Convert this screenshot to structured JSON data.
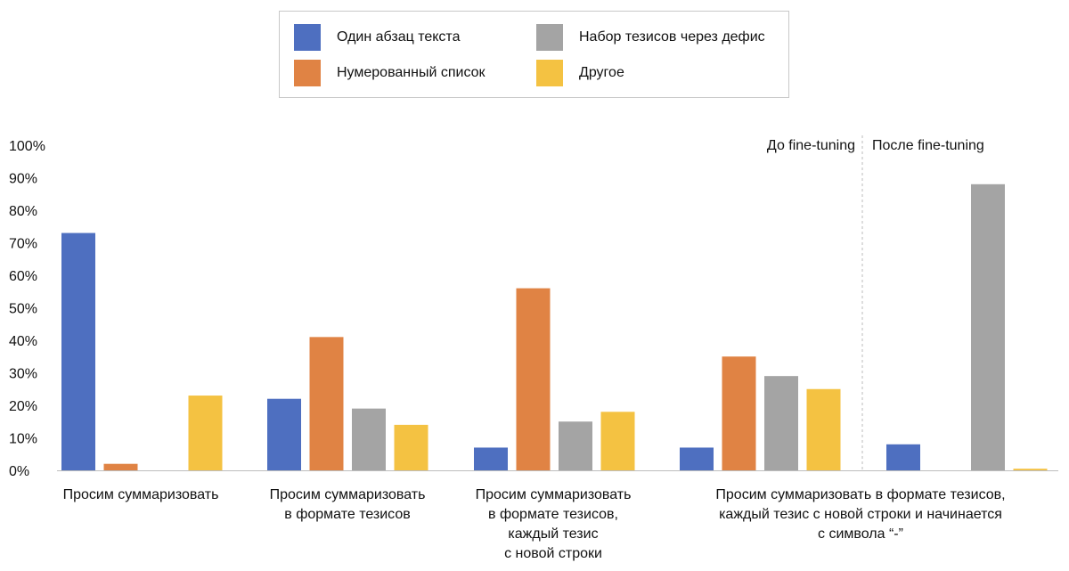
{
  "colors": {
    "one_paragraph": "#4e6fc0",
    "numbered_list": "#e08344",
    "dash_bullets": "#a4a4a4",
    "other": "#f4c242",
    "axis": "#bdbdbd",
    "divider": "#bbbbbb"
  },
  "legend": {
    "items": [
      {
        "label": "Один абзац текста",
        "color": "#4e6fc0"
      },
      {
        "label": "Набор тезисов через дефис",
        "color": "#a4a4a4"
      },
      {
        "label": "Нумерованный список",
        "color": "#e08344"
      },
      {
        "label": "Другое",
        "color": "#f4c242"
      }
    ]
  },
  "chart_data": {
    "type": "bar",
    "title": "",
    "xlabel": "",
    "ylabel": "",
    "ylim": [
      0,
      100
    ],
    "yticks": [
      "0%",
      "10%",
      "20%",
      "30%",
      "40%",
      "50%",
      "60%",
      "70%",
      "80%",
      "90%",
      "100%"
    ],
    "grid": false,
    "legend_position": "top-center",
    "series_names": [
      "Один абзац текста",
      "Нумерованный список",
      "Набор тезисов через дефис",
      "Другое"
    ],
    "groups": [
      {
        "label": [
          "Просим суммаризовать"
        ],
        "values": [
          73,
          2,
          0,
          23
        ]
      },
      {
        "label": [
          "Просим суммаризовать",
          "в формате тезисов"
        ],
        "values": [
          22,
          41,
          19,
          14
        ]
      },
      {
        "label": [
          "Просим суммаризовать",
          "в формате тезисов,",
          "каждый тезис",
          "с новой строки"
        ],
        "values": [
          7,
          56,
          15,
          18
        ]
      },
      {
        "label": [
          "Просим суммаризовать в формате тезисов,",
          "каждый тезис с новой строки и начинается",
          "с символа “-”"
        ],
        "subgroups": [
          {
            "annotation": "До fine-tuning",
            "values": [
              7,
              35,
              29,
              25
            ]
          },
          {
            "annotation": "После fine-tuning",
            "values": [
              8,
              0,
              88,
              0.5
            ]
          }
        ]
      }
    ]
  }
}
